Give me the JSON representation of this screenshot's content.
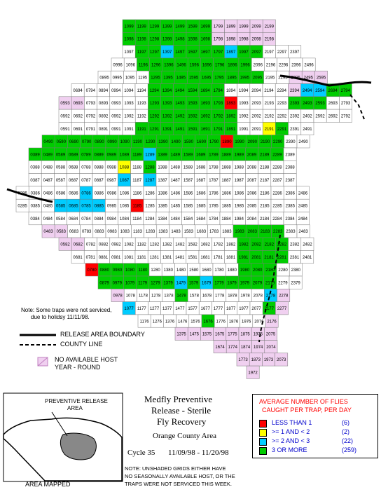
{
  "map": {
    "notes": {
      "service_note_line1": "Note: Some traps were not serviced,",
      "service_note_line2": "due to holidsy 11/11/98."
    },
    "legend_lines": [
      {
        "label": "RELEASE AREA BOUNDARY",
        "style": "solid"
      },
      {
        "label": "COUNTY LINE",
        "style": "dashed"
      }
    ],
    "host_legend": {
      "line1": "NO AVAILABLE HOST",
      "line2": "YEAR - ROUND"
    },
    "category_colors": {
      "lt1": "#ff0000",
      "1to2": "#ffff00",
      "2to3": "#00ccff",
      "3plus": "#00cc00",
      "none": "#ffffff",
      "nohost": "#f0d0f0"
    },
    "grid_rows": [
      {
        "labels": [
          "1099",
          "1199",
          "1299",
          "1399",
          "1499",
          "1599",
          "1699",
          "1799",
          "1899",
          "1999",
          "2099",
          "2199"
        ]
      },
      {
        "labels": [
          "1098",
          "1198",
          "1298",
          "1398",
          "1498",
          "1598",
          "1698",
          "1798",
          "1898",
          "1998",
          "2098",
          "2198"
        ]
      },
      {
        "labels": [
          "1097",
          "1197",
          "1297",
          "1397",
          "1497",
          "1597",
          "1697",
          "1797",
          "1897",
          "1997",
          "2097",
          "2197",
          "2297",
          "2397"
        ]
      },
      {
        "labels": [
          "0996",
          "1096",
          "1196",
          "1296",
          "1396",
          "1496",
          "1596",
          "1696",
          "1796",
          "1896",
          "1996",
          "2096",
          "2196",
          "2296",
          "2396",
          "2496"
        ]
      },
      {
        "labels": [
          "0895",
          "0995",
          "1095",
          "1195",
          "1295",
          "1395",
          "1495",
          "1595",
          "1695",
          "1795",
          "1895",
          "1995",
          "2095",
          "2195",
          "2295",
          "2395",
          "2495",
          "2595"
        ]
      },
      {
        "labels": [
          "0694",
          "0794",
          "0894",
          "0994",
          "1094",
          "1194",
          "1294",
          "1394",
          "1494",
          "1594",
          "1694",
          "1794",
          "1894",
          "1994",
          "2094",
          "2194",
          "2294",
          "2394",
          "2494",
          "2594",
          "2694",
          "2794"
        ]
      },
      {
        "labels": [
          "0593",
          "0693",
          "0793",
          "0893",
          "0993",
          "1093",
          "1193",
          "1293",
          "1393",
          "1493",
          "1593",
          "1693",
          "1793",
          "1893",
          "1993",
          "2093",
          "2193",
          "2293",
          "2393",
          "2493",
          "2593",
          "2693",
          "2793"
        ]
      },
      {
        "labels": [
          "0592",
          "0692",
          "0792",
          "0892",
          "0992",
          "1092",
          "1192",
          "1292",
          "1392",
          "1492",
          "1592",
          "1692",
          "1792",
          "1892",
          "1992",
          "2092",
          "2192",
          "2292",
          "2392",
          "2492",
          "2592",
          "2692",
          "2792"
        ]
      },
      {
        "labels": [
          "0591",
          "0691",
          "0791",
          "0891",
          "0991",
          "1091",
          "1191",
          "1291",
          "1391",
          "1491",
          "1591",
          "1691",
          "1791",
          "1891",
          "1991",
          "2091",
          "2191",
          "2291",
          "2391",
          "2491"
        ]
      },
      {
        "labels": [
          "0490",
          "0590",
          "0690",
          "0790",
          "0890",
          "0990",
          "1090",
          "1190",
          "1290",
          "1390",
          "1490",
          "1590",
          "1690",
          "1790",
          "1890",
          "1990",
          "2090",
          "2190",
          "2290",
          "2390",
          "2490"
        ]
      },
      {
        "labels": [
          "0389",
          "0489",
          "0589",
          "0689",
          "0789",
          "0889",
          "0989",
          "1089",
          "1189",
          "1289",
          "1389",
          "1489",
          "1589",
          "1689",
          "1789",
          "1889",
          "1989",
          "2089",
          "2189",
          "2289",
          "2389"
        ]
      },
      {
        "labels": [
          "0388",
          "0488",
          "0588",
          "0688",
          "0788",
          "0888",
          "0988",
          "1088",
          "1188",
          "1288",
          "1388",
          "1488",
          "1588",
          "1688",
          "1788",
          "1888",
          "1988",
          "2088",
          "2188",
          "2288",
          "2388"
        ]
      },
      {
        "labels": [
          "0387",
          "0487",
          "0587",
          "0687",
          "0787",
          "0887",
          "0987",
          "1087",
          "1187",
          "1287",
          "1387",
          "1487",
          "1587",
          "1687",
          "1787",
          "1887",
          "1987",
          "2087",
          "2187",
          "2287",
          "2387"
        ]
      },
      {
        "labels": [
          "0286",
          "0386",
          "0486",
          "0586",
          "0686",
          "0786",
          "0886",
          "0986",
          "1086",
          "1186",
          "1286",
          "1386",
          "1486",
          "1586",
          "1686",
          "1786",
          "1886",
          "1986",
          "2086",
          "2186",
          "2286",
          "2386",
          "2486"
        ]
      },
      {
        "labels": [
          "0285",
          "0385",
          "0485",
          "0585",
          "0685",
          "0785",
          "0885",
          "0985",
          "1085",
          "1185",
          "1285",
          "1385",
          "1485",
          "1585",
          "1685",
          "1785",
          "1885",
          "1985",
          "2085",
          "2185",
          "2285",
          "2385",
          "2485"
        ]
      },
      {
        "labels": [
          "0384",
          "0484",
          "0584",
          "0684",
          "0784",
          "0884",
          "0984",
          "1084",
          "1184",
          "1284",
          "1384",
          "1484",
          "1584",
          "1684",
          "1784",
          "1884",
          "1984",
          "2084",
          "2184",
          "2284",
          "2384",
          "2484"
        ]
      },
      {
        "labels": [
          "0483",
          "0583",
          "0683",
          "0783",
          "0883",
          "0983",
          "1083",
          "1183",
          "1283",
          "1383",
          "1483",
          "1583",
          "1683",
          "1783",
          "1883",
          "1983",
          "2083",
          "2183",
          "2283",
          "2383",
          "2483"
        ]
      },
      {
        "labels": [
          "0582",
          "0682",
          "0782",
          "0882",
          "0982",
          "1082",
          "1182",
          "1282",
          "1382",
          "1482",
          "1582",
          "1682",
          "1782",
          "1882",
          "1982",
          "2082",
          "2182",
          "2282",
          "2382",
          "2482"
        ]
      },
      {
        "labels": [
          "0681",
          "0781",
          "0881",
          "0981",
          "1081",
          "1181",
          "1281",
          "1381",
          "1481",
          "1581",
          "1681",
          "1781",
          "1881",
          "1981",
          "2081",
          "2181",
          "2281",
          "2381",
          "2481"
        ]
      },
      {
        "labels": [
          "0780",
          "0880",
          "0980",
          "1080",
          "1180",
          "1280",
          "1380",
          "1480",
          "1580",
          "1680",
          "1780",
          "1880",
          "1980",
          "2080",
          "2180",
          "2280",
          "2380"
        ]
      },
      {
        "labels": [
          "0879",
          "0979",
          "1079",
          "1179",
          "1279",
          "1379",
          "1479",
          "1579",
          "1679",
          "1779",
          "1879",
          "1979",
          "2079",
          "2179",
          "2279",
          "2379"
        ]
      },
      {
        "labels": [
          "0978",
          "1078",
          "1178",
          "1278",
          "1378",
          "1478",
          "1578",
          "1678",
          "1778",
          "1878",
          "1978",
          "2078",
          "2178",
          "2278"
        ]
      },
      {
        "labels": [
          "1077",
          "1177",
          "1277",
          "1377",
          "1477",
          "1577",
          "1677",
          "1777",
          "1877",
          "1977",
          "2077",
          "2177",
          "2277"
        ]
      },
      {
        "labels": [
          "1176",
          "1276",
          "1376",
          "1476",
          "1576",
          "1676",
          "1776",
          "1876",
          "1976",
          "2076",
          "2176"
        ]
      },
      {
        "labels": [
          "1375",
          "1475",
          "1575",
          "1675",
          "1775",
          "1875",
          "1975",
          "2075"
        ]
      },
      {
        "labels": [
          "1674",
          "1774",
          "1874",
          "1974",
          "2074"
        ]
      },
      {
        "labels": [
          "1773",
          "1873",
          "1973",
          "2073"
        ]
      },
      {
        "labels": [
          "1972"
        ]
      }
    ]
  },
  "inset": {
    "title_line1": "PREVENTIVE RELEASE",
    "title_line2": "AREA",
    "caption": "AREA MAPPED"
  },
  "title_block": {
    "line1": "Medfly Preventive",
    "line2": "Release - Sterile",
    "line3": "Fly Recovery",
    "line4": "Orange County Area",
    "cycle": "Cycle 35",
    "dates": "11/09/98 - 11/20/98",
    "footnote_line1": "NOTE: UNSHADED GRIDS EITHER HAVE",
    "footnote_line2": "NO SEASONALLY AVAILABLE HOST, OR THE",
    "footnote_line3": "TRAPS WERE NOT SERVICED THIS WEEK."
  },
  "legend": {
    "title_line1": "AVERAGE NUMBER OF FLIES",
    "title_line2": "CAUGHT PER TRAP, PER DAY",
    "items": [
      {
        "label": "LESS THAN 1",
        "count": "(6)",
        "color": "#ff0000"
      },
      {
        "label": ">= 1 AND < 2",
        "count": "(2)",
        "color": "#ffff00"
      },
      {
        "label": ">= 2 AND < 3",
        "count": "(22)",
        "color": "#00ccff"
      },
      {
        "label": "3 OR MORE",
        "count": "(259)",
        "color": "#00cc00"
      }
    ]
  }
}
